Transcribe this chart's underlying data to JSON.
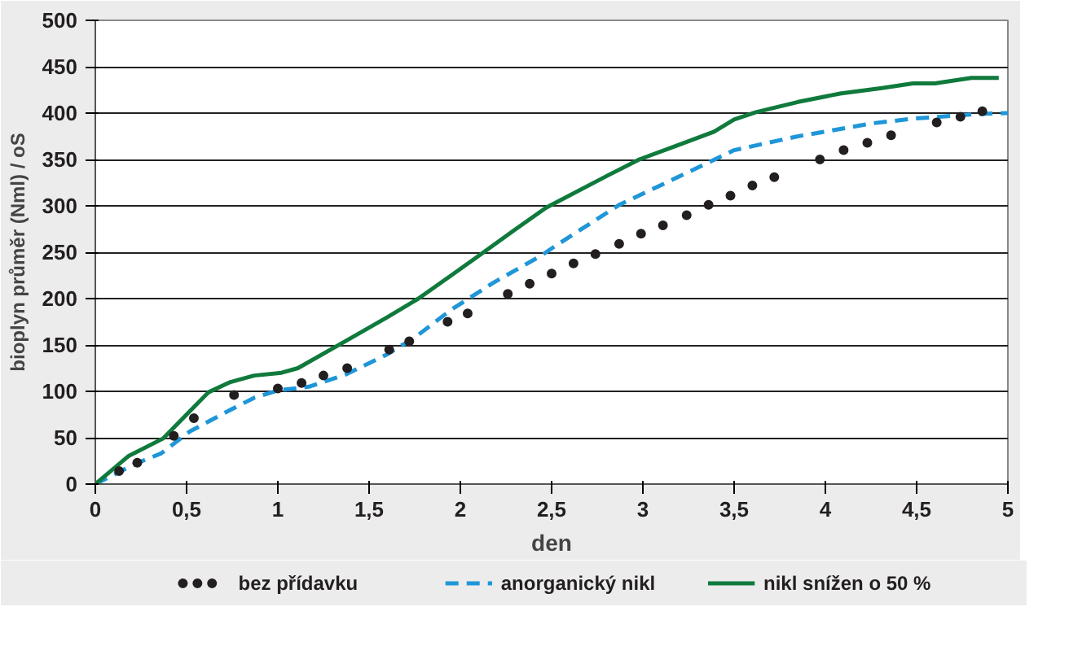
{
  "chart_data": {
    "type": "line",
    "xlabel": "den",
    "ylabel": "bioplyn průměr (Nml) / oS",
    "xlim": [
      0,
      5
    ],
    "ylim": [
      0,
      500
    ],
    "xticks": [
      0,
      {
        "value": 0.5,
        "label": "0,5"
      },
      1,
      {
        "value": 1.5,
        "label": "1,5"
      },
      2,
      {
        "value": 2.5,
        "label": "2,5"
      },
      3,
      {
        "value": 3.5,
        "label": "3,5"
      },
      4,
      {
        "value": 4.5,
        "label": "4,5"
      },
      5
    ],
    "yticks": [
      0,
      50,
      100,
      150,
      200,
      250,
      300,
      350,
      400,
      450,
      500
    ],
    "grid": "y",
    "legend": "bottom",
    "series": [
      {
        "name": "bez přídavku",
        "type": "scatter",
        "marker": "circle",
        "color": "#231f20",
        "x": [
          0.13,
          0.23,
          0.43,
          0.54,
          0.76,
          1.0,
          1.13,
          1.25,
          1.38,
          1.61,
          1.72,
          1.93,
          2.04,
          2.26,
          2.38,
          2.5,
          2.62,
          2.74,
          2.87,
          2.99,
          3.11,
          3.24,
          3.36,
          3.48,
          3.6,
          3.72,
          3.97,
          4.1,
          4.23,
          4.36,
          4.61,
          4.74,
          4.86
        ],
        "values": [
          14,
          23,
          52,
          71,
          96,
          103,
          109,
          117,
          125,
          145,
          154,
          175,
          184,
          205,
          216,
          227,
          238,
          248,
          259,
          270,
          279,
          290,
          301,
          311,
          322,
          331,
          350,
          360,
          368,
          376,
          390,
          396,
          402
        ]
      },
      {
        "name": "anorganický nikl",
        "line_style": "dashed",
        "color": "#1f96d8",
        "x": [
          0,
          0.22,
          0.36,
          0.52,
          0.74,
          0.87,
          1.0,
          1.17,
          1.37,
          1.6,
          1.75,
          1.95,
          2.18,
          2.44,
          2.53,
          2.87,
          3.16,
          3.5,
          3.85,
          4.26,
          4.48,
          4.83,
          5.0
        ],
        "values": [
          0,
          22,
          33,
          57,
          80,
          93,
          101,
          105,
          118,
          140,
          158,
          188,
          217,
          246,
          258,
          301,
          328,
          360,
          375,
          389,
          394,
          399,
          400
        ]
      },
      {
        "name": "nikl snížen o 50 %",
        "line_style": "solid",
        "color": "#0f7a3c",
        "x": [
          0,
          0.18,
          0.37,
          0.62,
          0.74,
          0.87,
          1.02,
          1.11,
          1.37,
          1.6,
          1.77,
          1.95,
          2.1,
          2.29,
          2.47,
          2.81,
          2.98,
          3.16,
          3.39,
          3.5,
          3.62,
          3.85,
          4.08,
          4.31,
          4.48,
          4.6,
          4.8,
          4.95
        ],
        "values": [
          0,
          30,
          49,
          99,
          110,
          117,
          120,
          125,
          154,
          180,
          200,
          225,
          246,
          273,
          298,
          333,
          350,
          363,
          380,
          393,
          401,
          412,
          421,
          427,
          432,
          432,
          438,
          438
        ]
      }
    ]
  }
}
